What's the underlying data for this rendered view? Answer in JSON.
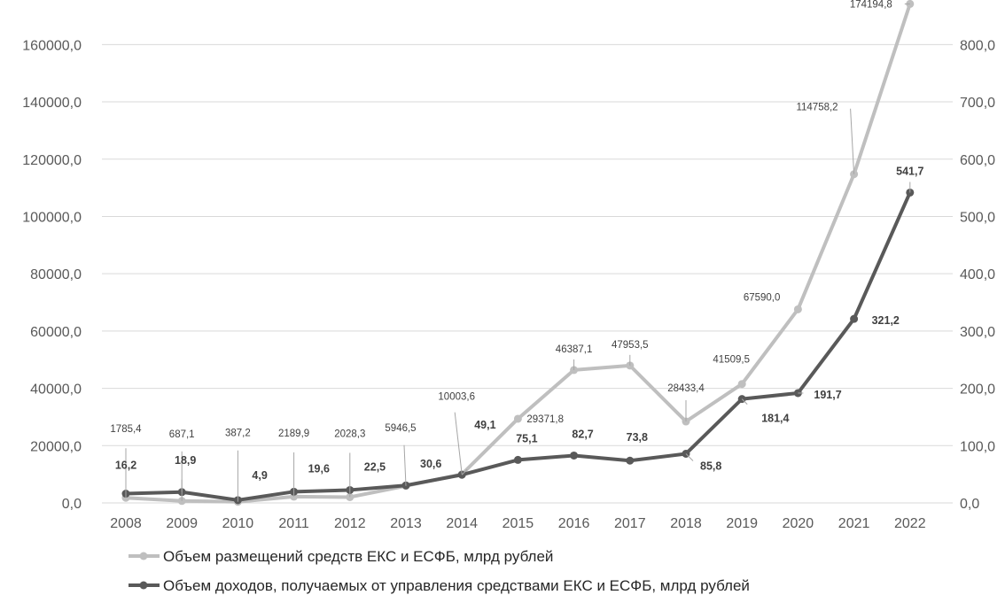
{
  "chart_data": {
    "type": "line",
    "categories": [
      "2008",
      "2009",
      "2010",
      "2011",
      "2012",
      "2013",
      "2014",
      "2015",
      "2016",
      "2017",
      "2018",
      "2019",
      "2020",
      "2021",
      "2022"
    ],
    "y_left": {
      "range": [
        0,
        170000
      ],
      "ticks": [
        0,
        20000,
        40000,
        60000,
        80000,
        100000,
        120000,
        140000,
        160000
      ],
      "tick_labels": [
        "0,0",
        "20000,0",
        "40000,0",
        "60000,0",
        "80000,0",
        "100000,0",
        "120000,0",
        "140000,0",
        "160000,0"
      ]
    },
    "y_right": {
      "range": [
        0,
        850
      ],
      "ticks": [
        0,
        100,
        200,
        300,
        400,
        500,
        600,
        700,
        800
      ],
      "tick_labels": [
        "0,0",
        "100,0",
        "200,0",
        "300,0",
        "400,0",
        "500,0",
        "600,0",
        "700,0",
        "800,0"
      ]
    },
    "series": [
      {
        "name": "Объем размещений средств ЕКС и ЕСФБ, млрд рублей",
        "axis": "left",
        "color": "#bfbfbf",
        "values": [
          1785.4,
          687.1,
          387.2,
          2189.9,
          2028.3,
          5946.5,
          10003.6,
          29371.8,
          46387.1,
          47953.5,
          28433.4,
          41509.5,
          67590.0,
          114758.2,
          174194.8
        ],
        "labels": [
          "1785,4",
          "687,1",
          "387,2",
          "2189,9",
          "2028,3",
          "5946,5",
          "10003,6",
          "29371,8",
          "46387,1",
          "47953,5",
          "28433,4",
          "41509,5",
          "67590,0",
          "114758,2",
          "174194,8"
        ]
      },
      {
        "name": "Объем доходов, получаемых от управления средствами ЕКС и ЕСФБ, млрд рублей",
        "axis": "right",
        "color": "#595959",
        "values": [
          16.2,
          18.9,
          4.9,
          19.6,
          22.5,
          30.6,
          49.1,
          75.1,
          82.7,
          73.8,
          85.8,
          181.4,
          191.7,
          321.2,
          541.7
        ],
        "labels": [
          "16,2",
          "18,9",
          "4,9",
          "19,6",
          "22,5",
          "30,6",
          "49,1",
          "75,1",
          "82,7",
          "73,8",
          "85,8",
          "181,4",
          "191,7",
          "321,2",
          "541,7"
        ]
      }
    ],
    "grid": true,
    "legend_position": "bottom"
  }
}
